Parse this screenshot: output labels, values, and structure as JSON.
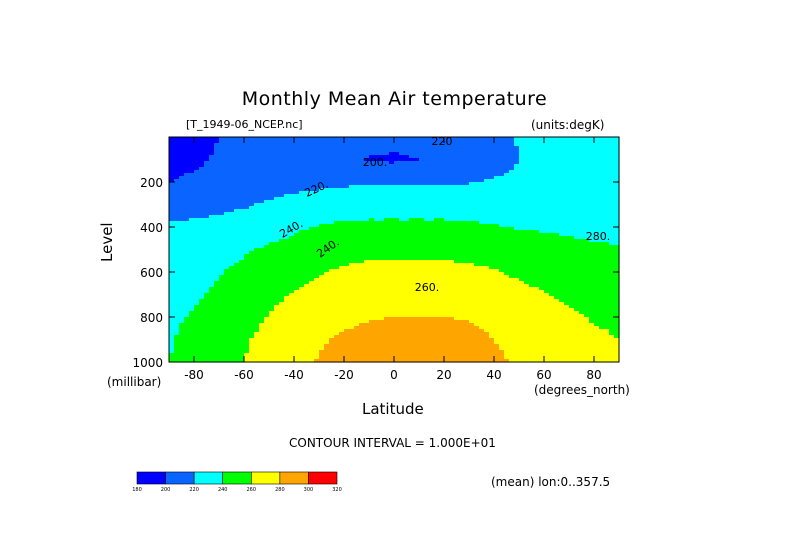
{
  "chart_data": {
    "type": "heatmap",
    "subtype": "filled-contour",
    "title": "Monthly Mean Air temperature",
    "dataset": "[T_1949-06_NCEP.nc]",
    "units_label": "(units:degK)",
    "xlabel": "Latitude",
    "xunits": "(degrees_north)",
    "ylabel": "Level",
    "yunits": "(millibar)",
    "xlim": [
      -90,
      90
    ],
    "ylim": [
      1000,
      0
    ],
    "xticks": [
      -80,
      -60,
      -40,
      -20,
      0,
      20,
      40,
      60,
      80
    ],
    "yticks": [
      200,
      400,
      600,
      800,
      1000
    ],
    "contour_interval_label": "CONTOUR INTERVAL = 1.000E+01",
    "mean_label": "(mean) lon:0..357.5",
    "contour_labels": [
      "220",
      "200.",
      "220.",
      "240.",
      "240.",
      "260.",
      "280."
    ],
    "colorbar": {
      "levels": [
        180,
        200,
        220,
        240,
        260,
        280,
        300,
        320
      ],
      "level_labels": [
        "180",
        "200",
        "220",
        "240",
        "260",
        "280",
        "300",
        "320"
      ],
      "colors": [
        "#0000ff",
        "#0a64ff",
        "#00ffff",
        "#00ff00",
        "#ffff00",
        "#ffa500",
        "#ff0000"
      ]
    },
    "approx_grid": {
      "lat": [
        -90,
        -80,
        -70,
        -60,
        -50,
        -40,
        -30,
        -20,
        -10,
        0,
        10,
        20,
        30,
        40,
        50,
        60,
        70,
        80,
        90
      ],
      "lev": [
        0,
        100,
        200,
        300,
        400,
        500,
        600,
        700,
        800,
        900,
        1000
      ],
      "temperature_K": [
        [
          195,
          198,
          200,
          205,
          212,
          216,
          214,
          212,
          208,
          206,
          208,
          212,
          214,
          217,
          221,
          224,
          228,
          230,
          232
        ],
        [
          196,
          198,
          201,
          205,
          210,
          212,
          207,
          205,
          199,
          197,
          200,
          204,
          208,
          212,
          220,
          225,
          228,
          233,
          228
        ],
        [
          200,
          202,
          205,
          208,
          210,
          214,
          215,
          217,
          219,
          218,
          218,
          219,
          219,
          222,
          224,
          226,
          227,
          228,
          229
        ],
        [
          212,
          213,
          215,
          218,
          222,
          226,
          230,
          231,
          232,
          232,
          232,
          232,
          231,
          229,
          228,
          228,
          228,
          228,
          228
        ],
        [
          222,
          224,
          226,
          229,
          233,
          237,
          241,
          243,
          244,
          244,
          244,
          244,
          243,
          241,
          239,
          238,
          237,
          236,
          236
        ],
        [
          230,
          232,
          234,
          238,
          242,
          246,
          250,
          253,
          255,
          255,
          255,
          255,
          254,
          252,
          249,
          246,
          244,
          242,
          241
        ],
        [
          234,
          236,
          239,
          244,
          249,
          254,
          259,
          263,
          265,
          265,
          265,
          265,
          264,
          261,
          257,
          253,
          250,
          248,
          247
        ],
        [
          236,
          238,
          242,
          249,
          255,
          261,
          266,
          270,
          272,
          273,
          273,
          273,
          272,
          269,
          265,
          261,
          257,
          254,
          253
        ],
        [
          238,
          241,
          247,
          254,
          261,
          267,
          273,
          277,
          279,
          280,
          280,
          280,
          279,
          276,
          271,
          266,
          262,
          259,
          258
        ],
        [
          239,
          243,
          250,
          258,
          265,
          272,
          278,
          282,
          284,
          285,
          286,
          286,
          284,
          280,
          275,
          270,
          265,
          262,
          260
        ],
        [
          240,
          244,
          252,
          260,
          268,
          275,
          281,
          285,
          287,
          288,
          289,
          289,
          287,
          283,
          278,
          272,
          267,
          263,
          261
        ]
      ]
    }
  }
}
